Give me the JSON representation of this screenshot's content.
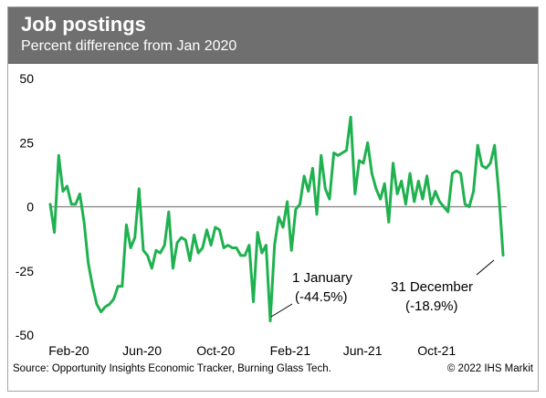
{
  "header": {
    "title": "Job postings",
    "subtitle": "Percent difference from Jan 2020"
  },
  "footer": {
    "source": "Source: Opportunity Insights Economic Tracker, Burning Glass Tech.",
    "copyright": "© 2022 IHS Markit"
  },
  "colors": {
    "line": "#1fb14f",
    "header_bg": "#6f6f6f",
    "zero_line": "#7f7f7f"
  },
  "chart_data": {
    "type": "line",
    "title": "Job postings",
    "subtitle": "Percent difference from Jan 2020",
    "xlabel": "",
    "ylabel": "",
    "ylim": [
      -50,
      50
    ],
    "yticks": [
      50,
      25,
      0,
      -25,
      -50
    ],
    "xticks": [
      "Feb-20",
      "Jun-20",
      "Oct-20",
      "Feb-21",
      "Jun-21",
      "Oct-21"
    ],
    "x_start": "2020-01-01",
    "x_step": "week",
    "grid": false,
    "series": [
      {
        "name": "",
        "values": [
          1,
          -10,
          20,
          6,
          8,
          1,
          1,
          5,
          -6,
          -22,
          -31,
          -38,
          -41,
          -39,
          -38,
          -36,
          -31,
          -31,
          -7,
          -16,
          -12,
          7,
          -17,
          -19,
          -24,
          -17,
          -18,
          -15,
          -2,
          -24,
          -14,
          -12,
          -13,
          -21,
          -11,
          -18,
          -16,
          -9,
          -15,
          -8,
          -9,
          -16,
          -15,
          -16,
          -16,
          -19,
          -19,
          -15,
          -37,
          -10,
          -18,
          -15,
          -44.5,
          -15,
          -4,
          -8,
          2,
          -17,
          -1,
          1,
          12,
          6,
          15,
          -3,
          20,
          7,
          3,
          21,
          20,
          21,
          22,
          35,
          5,
          18,
          17,
          25,
          13,
          7,
          3,
          9,
          -6,
          17,
          5,
          10,
          1,
          13,
          2,
          10,
          3,
          12,
          1,
          6,
          2,
          0,
          -2,
          13,
          14,
          13,
          1,
          0,
          6,
          24,
          16,
          15,
          17,
          24,
          5,
          -18.9
        ]
      }
    ],
    "annotations": [
      {
        "line1": "1 January",
        "line2": "(-44.5%)"
      },
      {
        "line1": "31 December",
        "line2": "(-18.9%)"
      }
    ]
  }
}
